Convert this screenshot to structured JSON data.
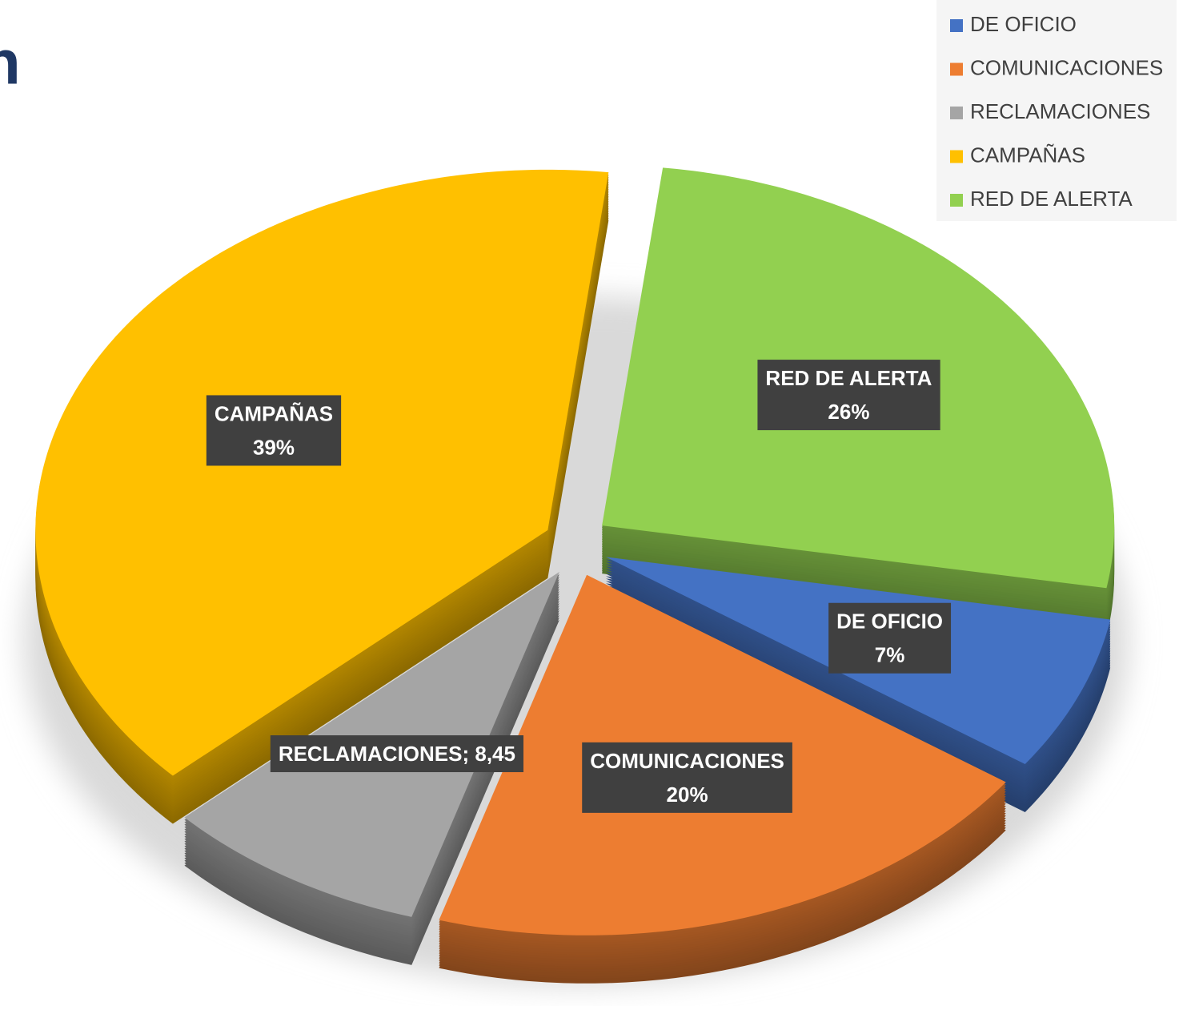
{
  "chart_data": {
    "type": "pie3d",
    "title": "n",
    "categories": [
      "DE OFICIO",
      "COMUNICACIONES",
      "RECLAMACIONES",
      "CAMPAÑAS",
      "RED DE ALERTA"
    ],
    "values": [
      7,
      20,
      8.45,
      39,
      26
    ],
    "data_labels": [
      [
        "DE OFICIO",
        "7%"
      ],
      [
        "COMUNICACIONES",
        "20%"
      ],
      [
        "RECLAMACIONES; 8,45"
      ],
      [
        "CAMPAÑAS",
        "39%"
      ],
      [
        "RED DE ALERTA",
        "26%"
      ]
    ],
    "colors": [
      "#4472c4",
      "#ed7d31",
      "#a5a5a5",
      "#ffc000",
      "#92d050"
    ],
    "legend": "top-right"
  }
}
